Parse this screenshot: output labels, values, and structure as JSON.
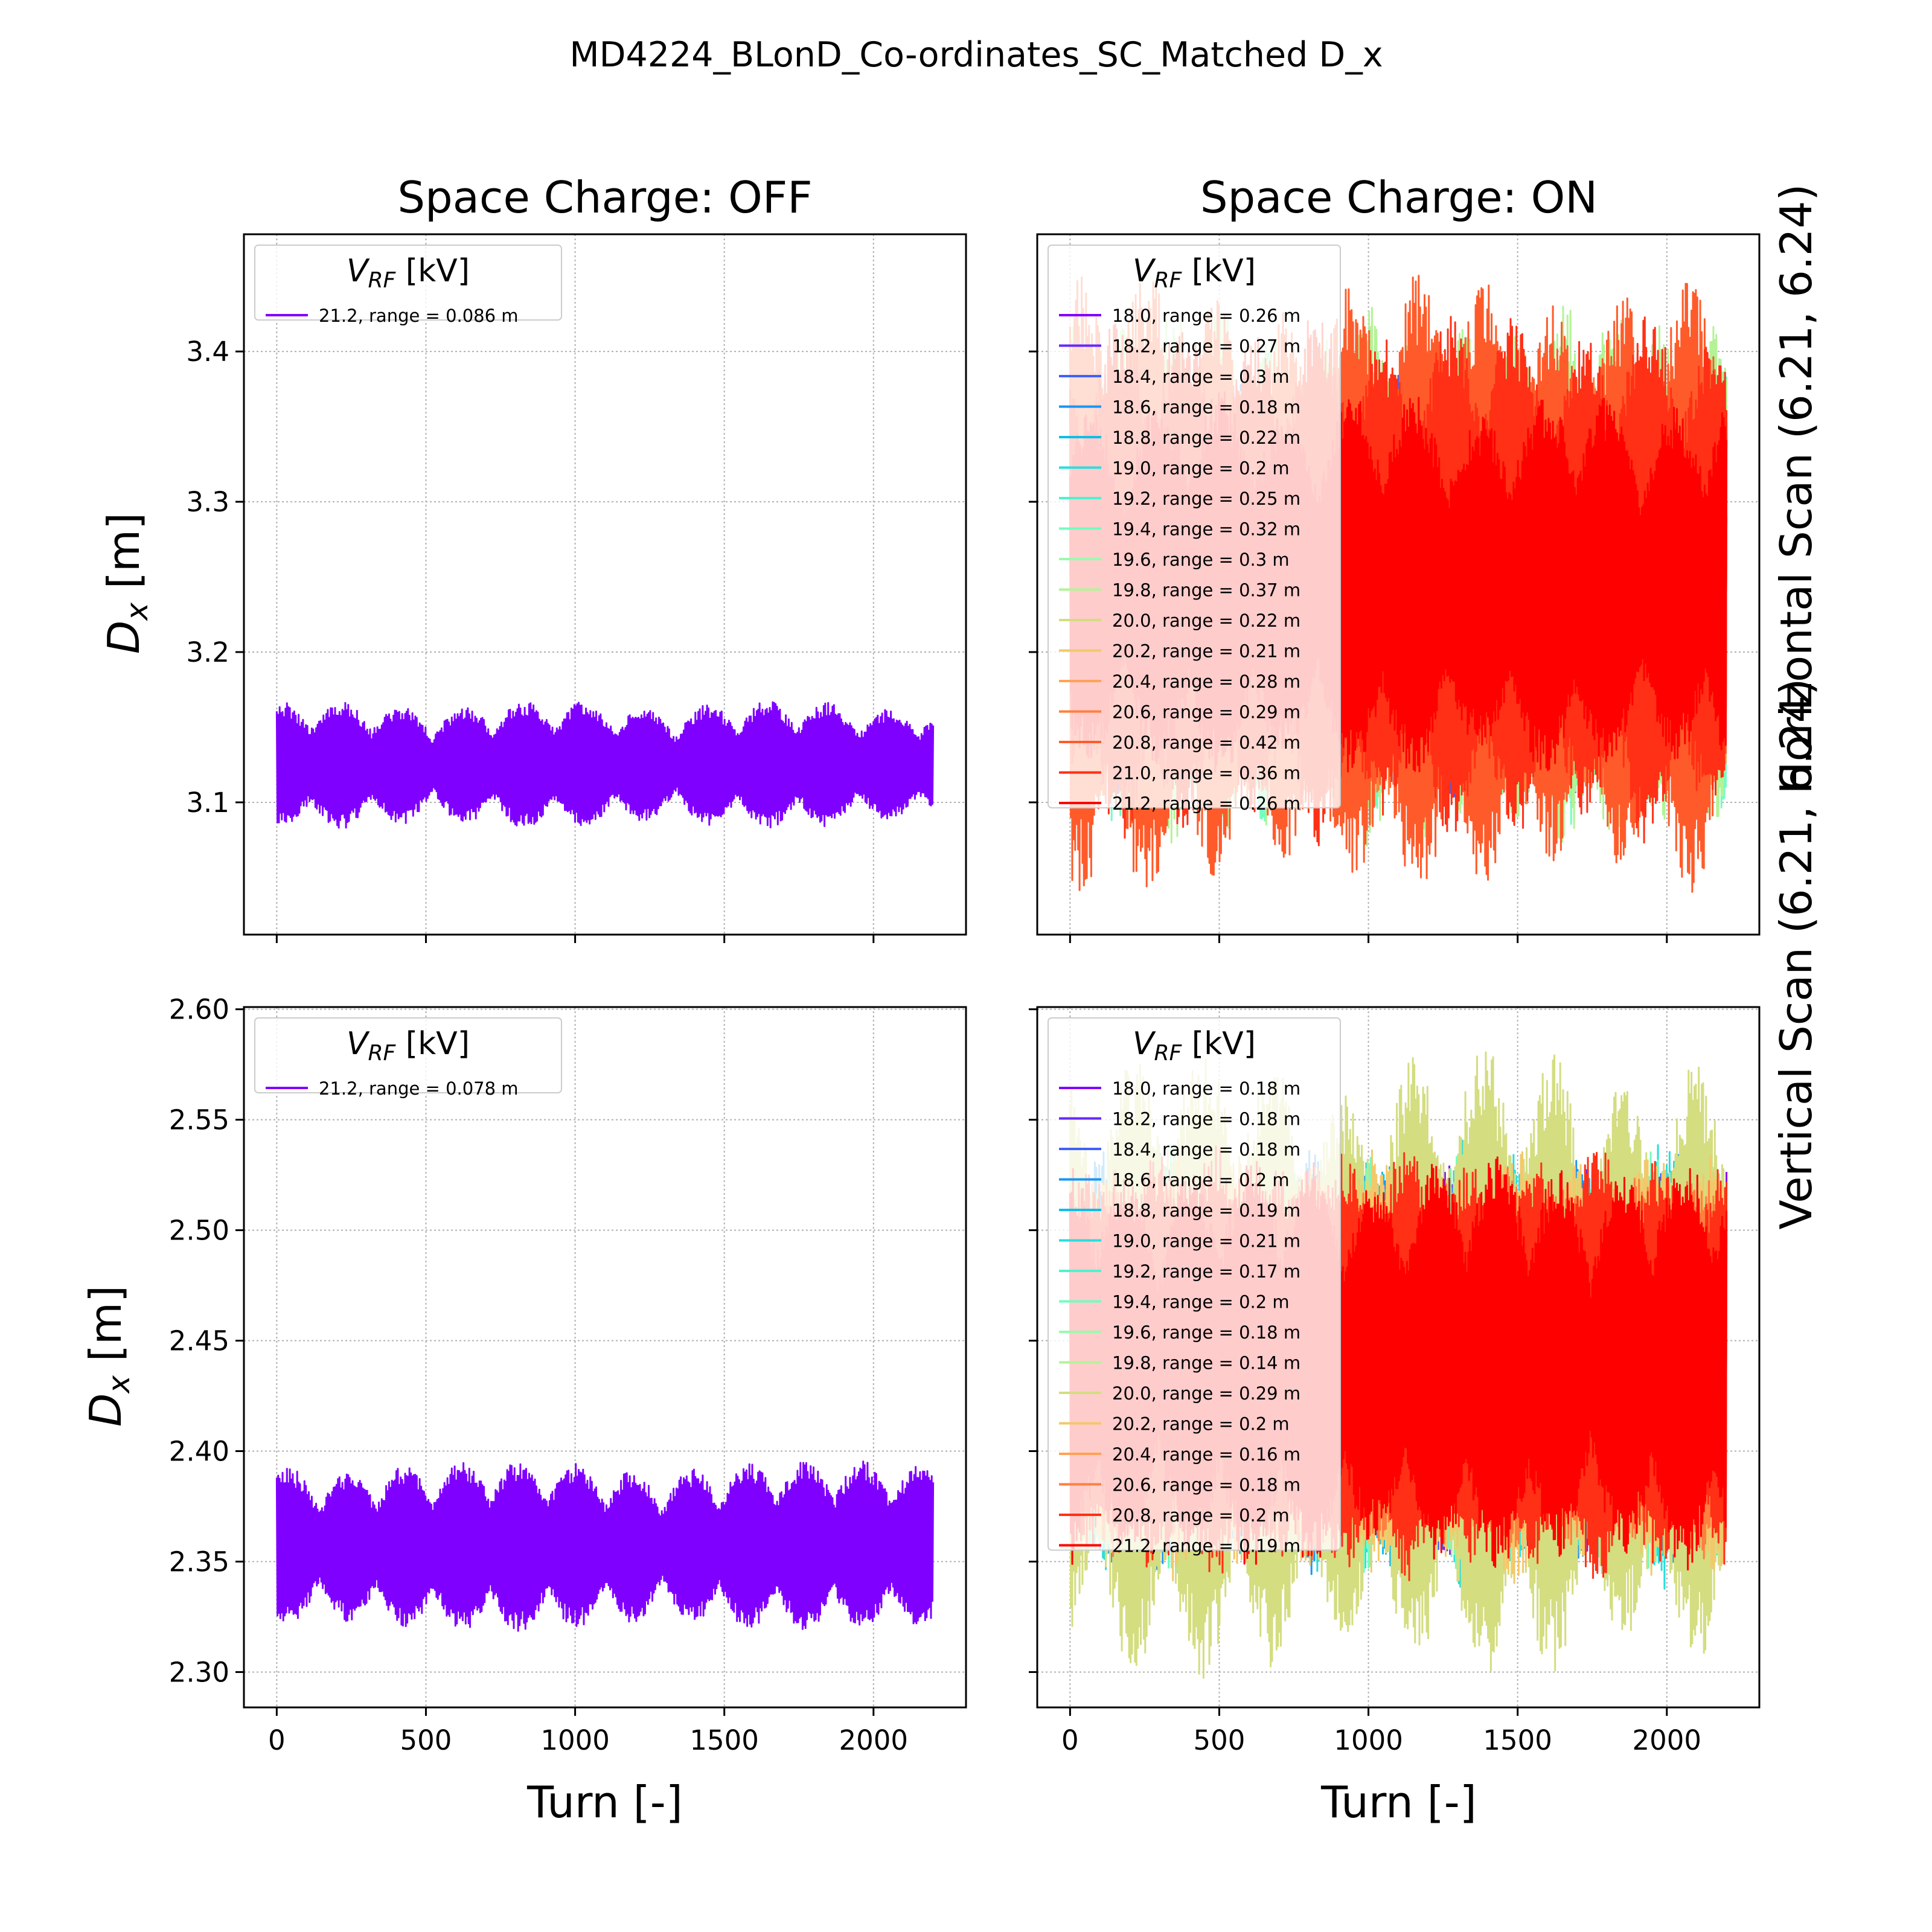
{
  "figure": {
    "suptitle": "MD4224_BLonD_Co-ordinates_SC_Matched D_x",
    "col_titles": [
      "Space Charge: OFF",
      "Space Charge: ON"
    ],
    "row_labels": [
      "Horizontal Scan (6.21, 6.24)",
      "Vertical Scan (6.21, 6.24)"
    ],
    "xlabel": "Turn [-]",
    "ylabel_main": "D",
    "ylabel_sub": "x",
    "ylabel_unit": " [m]",
    "legend_title_main": "V",
    "legend_title_sub": "RF",
    "legend_title_unit": " [kV]"
  },
  "chart_data": [
    {
      "type": "line",
      "panel": "Horizontal Scan - Space Charge OFF",
      "xlim": [
        -110,
        2310
      ],
      "ylim": [
        3.012,
        3.478
      ],
      "xticks": [
        0,
        500,
        1000,
        1500,
        2000
      ],
      "yticks": [
        3.1,
        3.2,
        3.3,
        3.4
      ],
      "ytick_labels": [
        "3.1",
        "3.2",
        "3.3",
        "3.4"
      ],
      "show_xtick_labels": false,
      "show_ytick_labels": true,
      "grid": true,
      "legend_position": "upper left",
      "series": [
        {
          "name": "21.2, range = 0.086 m",
          "color": "#8000ff",
          "center": 3.125,
          "amplitude": 0.043,
          "x_range": [
            0,
            2200
          ]
        }
      ]
    },
    {
      "type": "line",
      "panel": "Horizontal Scan - Space Charge ON",
      "xlim": [
        -110,
        2310
      ],
      "ylim": [
        3.012,
        3.478
      ],
      "xticks": [
        0,
        500,
        1000,
        1500,
        2000
      ],
      "yticks": [
        3.1,
        3.2,
        3.3,
        3.4
      ],
      "show_xtick_labels": false,
      "show_ytick_labels": false,
      "grid": true,
      "legend_position": "upper left",
      "series": [
        {
          "name": "18.0, range = 0.26 m",
          "color": "#8000ff",
          "center": 3.24,
          "amplitude": 0.13,
          "x_range": [
            0,
            2200
          ]
        },
        {
          "name": "18.2, range = 0.27 m",
          "color": "#6629fe",
          "center": 3.24,
          "amplitude": 0.135,
          "x_range": [
            0,
            2200
          ]
        },
        {
          "name": "18.4, range = 0.3 m",
          "color": "#3f61fa",
          "center": 3.245,
          "amplitude": 0.15,
          "x_range": [
            0,
            2200
          ]
        },
        {
          "name": "18.6, range = 0.18 m",
          "color": "#1996f3",
          "center": 3.24,
          "amplitude": 0.09,
          "x_range": [
            0,
            2200
          ]
        },
        {
          "name": "18.8, range = 0.22 m",
          "color": "#0dbfe8",
          "center": 3.24,
          "amplitude": 0.11,
          "x_range": [
            0,
            2200
          ]
        },
        {
          "name": "19.0, range = 0.2 m",
          "color": "#2adddd",
          "center": 3.24,
          "amplitude": 0.1,
          "x_range": [
            0,
            2200
          ]
        },
        {
          "name": "19.2, range = 0.25 m",
          "color": "#4df3ce",
          "center": 3.24,
          "amplitude": 0.125,
          "x_range": [
            0,
            2200
          ]
        },
        {
          "name": "19.4, range = 0.32 m",
          "color": "#73fdbf",
          "center": 3.24,
          "amplitude": 0.16,
          "x_range": [
            0,
            2200
          ]
        },
        {
          "name": "19.6, range = 0.3 m",
          "color": "#9afaad",
          "center": 3.245,
          "amplitude": 0.15,
          "x_range": [
            0,
            2200
          ]
        },
        {
          "name": "19.8, range = 0.37 m",
          "color": "#b3f396",
          "center": 3.25,
          "amplitude": 0.185,
          "x_range": [
            0,
            2200
          ]
        },
        {
          "name": "20.0, range = 0.22 m",
          "color": "#d4dd80",
          "center": 3.24,
          "amplitude": 0.11,
          "x_range": [
            0,
            2200
          ]
        },
        {
          "name": "20.2, range = 0.21 m",
          "color": "#f3c86a",
          "center": 3.24,
          "amplitude": 0.105,
          "x_range": [
            0,
            2200
          ]
        },
        {
          "name": "20.4, range = 0.28 m",
          "color": "#ffa256",
          "center": 3.24,
          "amplitude": 0.14,
          "x_range": [
            0,
            2200
          ]
        },
        {
          "name": "20.6, range = 0.29 m",
          "color": "#ff7f3f",
          "center": 3.24,
          "amplitude": 0.145,
          "x_range": [
            0,
            2200
          ]
        },
        {
          "name": "20.8, range = 0.42 m",
          "color": "#ff5b2a",
          "center": 3.245,
          "amplitude": 0.21,
          "x_range": [
            0,
            2200
          ]
        },
        {
          "name": "21.0, range = 0.36 m",
          "color": "#ff3015",
          "center": 3.25,
          "amplitude": 0.18,
          "x_range": [
            0,
            2200
          ]
        },
        {
          "name": "21.2, range = 0.26 m",
          "color": "#ff0000",
          "center": 3.245,
          "amplitude": 0.13,
          "x_range": [
            0,
            2200
          ]
        }
      ]
    },
    {
      "type": "line",
      "panel": "Vertical Scan - Space Charge OFF",
      "xlim": [
        -110,
        2310
      ],
      "ylim": [
        2.284,
        2.601
      ],
      "xticks": [
        0,
        500,
        1000,
        1500,
        2000
      ],
      "xtick_labels": [
        "0",
        "500",
        "1000",
        "1500",
        "2000"
      ],
      "yticks": [
        2.3,
        2.35,
        2.4,
        2.45,
        2.5,
        2.55,
        2.6
      ],
      "ytick_labels": [
        "2.30",
        "2.35",
        "2.40",
        "2.45",
        "2.50",
        "2.55",
        "2.60"
      ],
      "show_xtick_labels": true,
      "show_ytick_labels": true,
      "grid": true,
      "legend_position": "upper left",
      "series": [
        {
          "name": "21.2, range = 0.078 m",
          "color": "#8000ff",
          "center": 2.357,
          "amplitude": 0.039,
          "x_range": [
            0,
            2200
          ]
        }
      ]
    },
    {
      "type": "line",
      "panel": "Vertical Scan - Space Charge ON",
      "xlim": [
        -110,
        2310
      ],
      "ylim": [
        2.284,
        2.601
      ],
      "xticks": [
        0,
        500,
        1000,
        1500,
        2000
      ],
      "xtick_labels": [
        "0",
        "500",
        "1000",
        "1500",
        "2000"
      ],
      "yticks": [
        2.3,
        2.35,
        2.4,
        2.45,
        2.5,
        2.55,
        2.6
      ],
      "show_xtick_labels": true,
      "show_ytick_labels": false,
      "grid": true,
      "legend_position": "upper left",
      "series": [
        {
          "name": "18.0, range = 0.18 m",
          "color": "#8000ff",
          "center": 2.44,
          "amplitude": 0.09,
          "x_range": [
            0,
            2200
          ]
        },
        {
          "name": "18.2, range = 0.18 m",
          "color": "#6629fe",
          "center": 2.44,
          "amplitude": 0.09,
          "x_range": [
            0,
            2200
          ]
        },
        {
          "name": "18.4, range = 0.18 m",
          "color": "#3f61fa",
          "center": 2.44,
          "amplitude": 0.09,
          "x_range": [
            0,
            2200
          ]
        },
        {
          "name": "18.6, range = 0.2 m",
          "color": "#1996f3",
          "center": 2.44,
          "amplitude": 0.1,
          "x_range": [
            0,
            2200
          ]
        },
        {
          "name": "18.8, range = 0.19 m",
          "color": "#0dbfe8",
          "center": 2.44,
          "amplitude": 0.095,
          "x_range": [
            0,
            2200
          ]
        },
        {
          "name": "19.0, range = 0.21 m",
          "color": "#2adddd",
          "center": 2.44,
          "amplitude": 0.105,
          "x_range": [
            0,
            2200
          ]
        },
        {
          "name": "19.2, range = 0.17 m",
          "color": "#4df3ce",
          "center": 2.44,
          "amplitude": 0.085,
          "x_range": [
            0,
            2200
          ]
        },
        {
          "name": "19.4, range = 0.2 m",
          "color": "#73fdbf",
          "center": 2.44,
          "amplitude": 0.1,
          "x_range": [
            0,
            2200
          ]
        },
        {
          "name": "19.6, range = 0.18 m",
          "color": "#9afaad",
          "center": 2.44,
          "amplitude": 0.09,
          "x_range": [
            0,
            2200
          ]
        },
        {
          "name": "19.8, range = 0.14 m",
          "color": "#b3f396",
          "center": 2.44,
          "amplitude": 0.07,
          "x_range": [
            0,
            2200
          ]
        },
        {
          "name": "20.0, range = 0.29 m",
          "color": "#d4dd80",
          "center": 2.44,
          "amplitude": 0.145,
          "x_range": [
            0,
            2200
          ]
        },
        {
          "name": "20.2, range = 0.2 m",
          "color": "#f3c86a",
          "center": 2.44,
          "amplitude": 0.1,
          "x_range": [
            0,
            2200
          ]
        },
        {
          "name": "20.4, range = 0.16 m",
          "color": "#ffa256",
          "center": 2.44,
          "amplitude": 0.08,
          "x_range": [
            0,
            2200
          ]
        },
        {
          "name": "20.6, range = 0.18 m",
          "color": "#ff7f3f",
          "center": 2.44,
          "amplitude": 0.09,
          "x_range": [
            0,
            2200
          ]
        },
        {
          "name": "20.8, range = 0.2 m",
          "color": "#ff3015",
          "center": 2.44,
          "amplitude": 0.1,
          "x_range": [
            0,
            2200
          ]
        },
        {
          "name": "21.2, range = 0.19 m",
          "color": "#ff0000",
          "center": 2.44,
          "amplitude": 0.095,
          "x_range": [
            0,
            2200
          ]
        }
      ]
    }
  ]
}
